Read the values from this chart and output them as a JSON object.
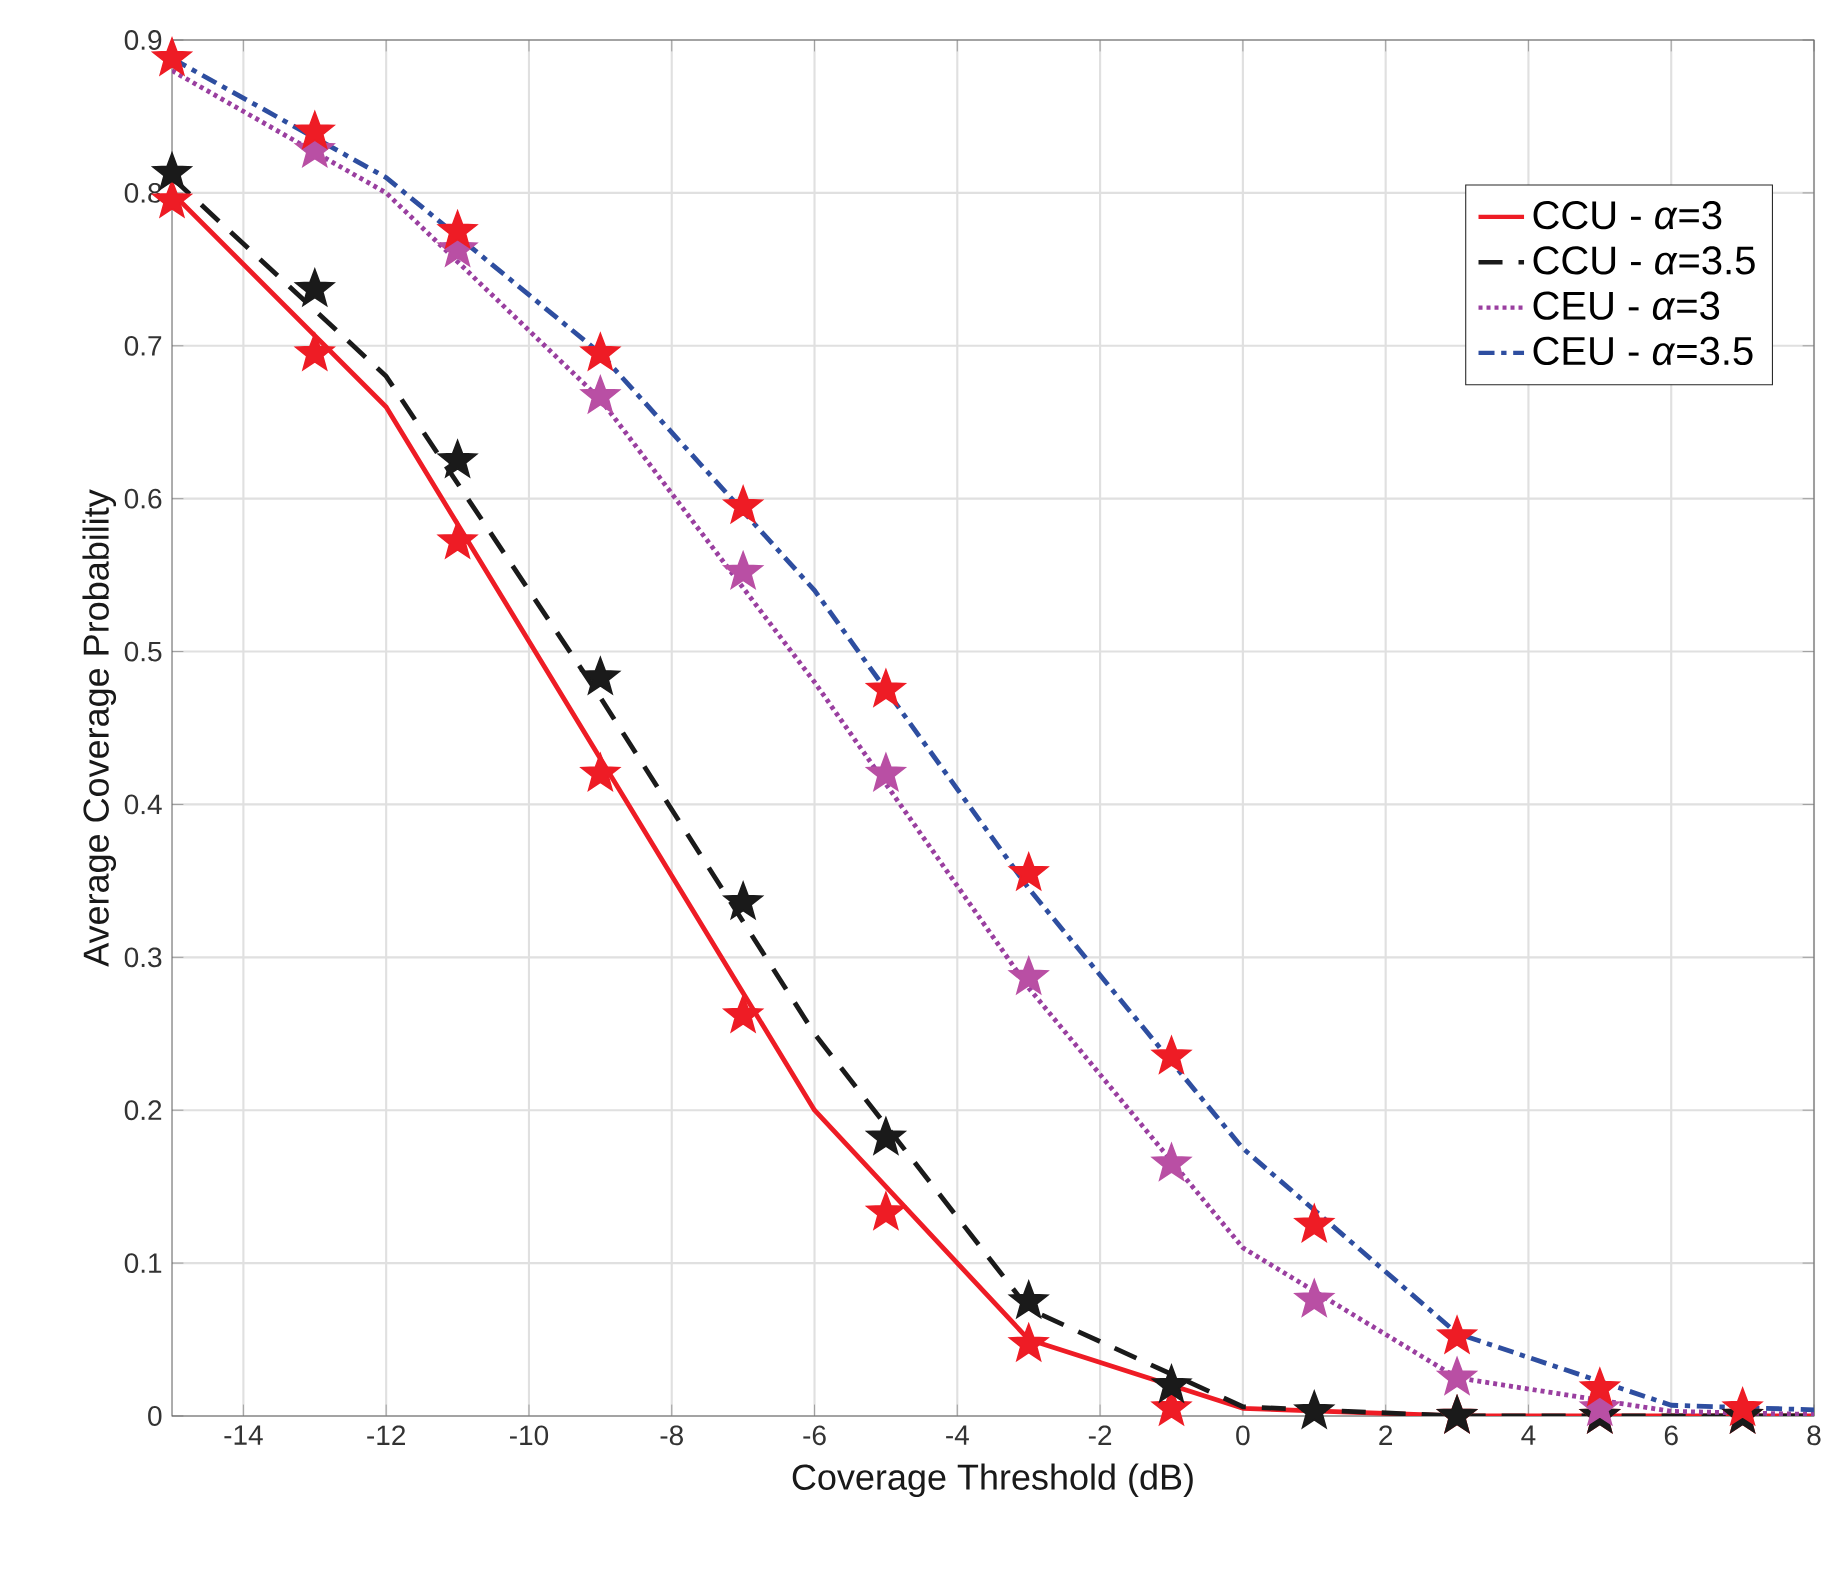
{
  "chart_data": {
    "type": "line",
    "xlabel": "Coverage Threshold (dB)",
    "ylabel": "Average Coverage Probability",
    "xlim": [
      -15,
      8
    ],
    "xticks": [
      -14,
      -12,
      -10,
      -8,
      -6,
      -4,
      -2,
      0,
      2,
      4,
      6,
      8
    ],
    "ylim": [
      0,
      0.9
    ],
    "yticks": [
      0,
      0.1,
      0.2,
      0.3,
      0.4,
      0.5,
      0.6,
      0.7,
      0.8,
      0.9
    ],
    "grid": true,
    "legend": "top right",
    "series": [
      {
        "name": "CCU - *α*=3",
        "color": "#ee1c25",
        "line_style": "solid",
        "marker": "none",
        "x": [
          -15,
          -12,
          -9,
          -6,
          -3,
          0,
          3,
          6,
          8
        ],
        "values": [
          0.8,
          0.66,
          0.43,
          0.2,
          0.05,
          0.005,
          0,
          0,
          0
        ]
      },
      {
        "name": "CCU - *α*=3.5",
        "color": "#1a1a1a",
        "line_style": "dashed",
        "marker": "none",
        "x": [
          -15,
          -12,
          -9,
          -6,
          -3,
          0,
          3,
          6,
          8
        ],
        "values": [
          0.81,
          0.68,
          0.47,
          0.25,
          0.07,
          0.006,
          0,
          0,
          0
        ]
      },
      {
        "name": "CEU - *α*=3",
        "color": "#9a3fa0",
        "line_style": "dotted",
        "marker": "none",
        "x": [
          -15,
          -12,
          -9,
          -6,
          -3,
          0,
          3,
          6,
          8
        ],
        "values": [
          0.88,
          0.8,
          0.665,
          0.48,
          0.28,
          0.11,
          0.025,
          0.003,
          0.001
        ]
      },
      {
        "name": "CEU - *α*=3.5",
        "color": "#2e4ea0",
        "line_style": "dashdot",
        "marker": "none",
        "x": [
          -15,
          -12,
          -9,
          -6,
          -3,
          0,
          3,
          6,
          8
        ],
        "values": [
          0.888,
          0.81,
          0.695,
          0.54,
          0.345,
          0.175,
          0.054,
          0.007,
          0.004
        ]
      },
      {
        "type": "scatter",
        "color": "#ee1c25",
        "marker": "star",
        "x": [
          -15,
          -13,
          -11,
          -9,
          -7,
          -5,
          -3,
          -1,
          1,
          3,
          5,
          7
        ],
        "values": [
          0.795,
          0.695,
          0.572,
          0.42,
          0.262,
          0.133,
          0.047,
          0.005,
          null,
          0,
          0,
          0
        ]
      },
      {
        "type": "scatter",
        "color": "#1a1a1a",
        "marker": "star",
        "x": [
          -15,
          -13,
          -11,
          -9,
          -7,
          -5,
          -3,
          -1,
          1,
          3,
          5,
          7
        ],
        "values": [
          0.813,
          0.737,
          0.625,
          0.483,
          0.336,
          0.182,
          0.075,
          0.02,
          0.003,
          0,
          0,
          0
        ]
      },
      {
        "type": "scatter",
        "color": "#b94fa4",
        "marker": "star",
        "x": [
          -13,
          -11,
          -9,
          -7,
          -5,
          -3,
          -1,
          1,
          3,
          5
        ],
        "values": [
          0.828,
          0.763,
          0.667,
          0.552,
          0.42,
          0.287,
          0.165,
          0.076,
          0.025,
          0.005
        ]
      },
      {
        "type": "scatter",
        "color": "#ee1c25",
        "marker": "star",
        "x": [
          -15,
          -13,
          -11,
          -9,
          -7,
          -5,
          -3,
          -1,
          1,
          3,
          5,
          7
        ],
        "values": [
          0.888,
          0.84,
          0.775,
          0.695,
          0.595,
          0.475,
          0.355,
          0.235,
          0.125,
          0.052,
          0.018,
          0.005
        ]
      }
    ]
  }
}
